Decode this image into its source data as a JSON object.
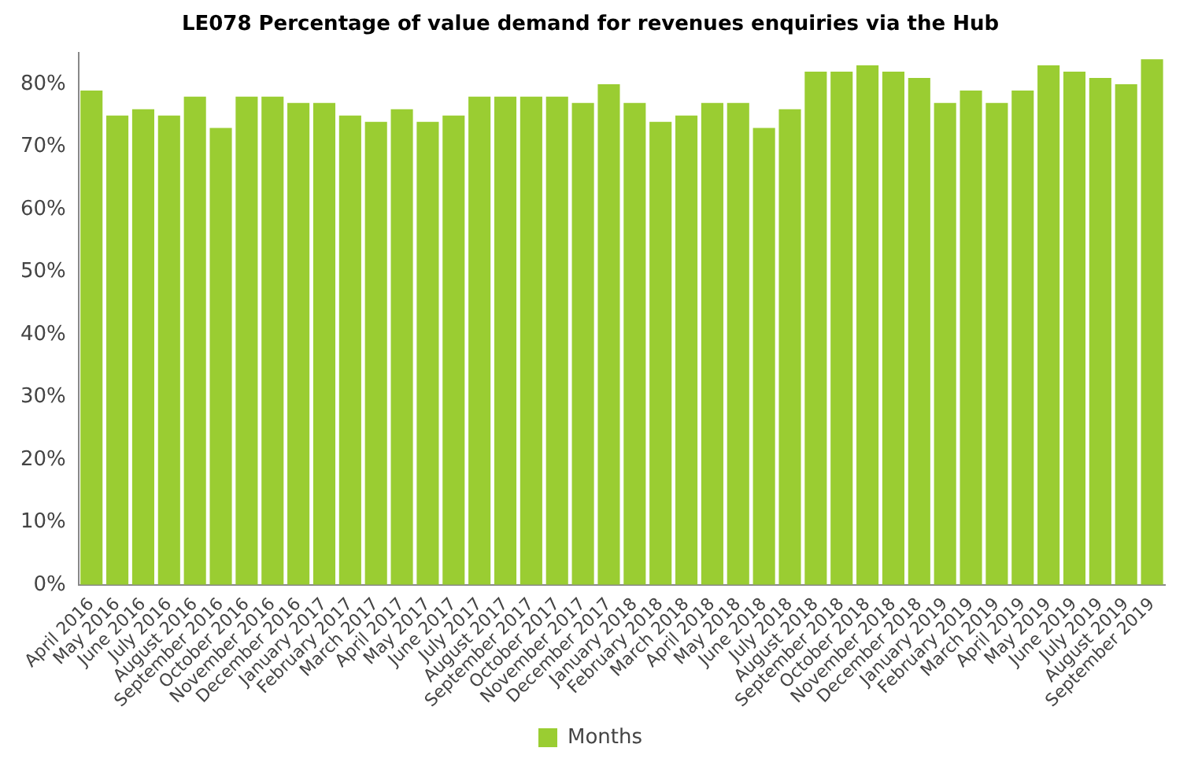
{
  "chart_data": {
    "type": "bar",
    "title": "LE078 Percentage of value demand for revenues enquiries via the Hub",
    "categories": [
      "April 2016",
      "May 2016",
      "June 2016",
      "July 2016",
      "August 2016",
      "September 2016",
      "October 2016",
      "November 2016",
      "December 2016",
      "January 2017",
      "February 2017",
      "March 2017",
      "April 2017",
      "May 2017",
      "June 2017",
      "July 2017",
      "August 2017",
      "September 2017",
      "October 2017",
      "November 2017",
      "December 2017",
      "January 2018",
      "February 2018",
      "March 2018",
      "April 2018",
      "May 2018",
      "June 2018",
      "July 2018",
      "August 2018",
      "September 2018",
      "October 2018",
      "November 2018",
      "December 2018",
      "January 2019",
      "February 2019",
      "March 2019",
      "April 2019",
      "May 2019",
      "June 2019",
      "July 2019",
      "August 2019",
      "September 2019"
    ],
    "series": [
      {
        "name": "Months",
        "color": "#9acd32",
        "values": [
          79,
          75,
          76,
          75,
          78,
          73,
          78,
          78,
          77,
          77,
          75,
          74,
          76,
          74,
          75,
          78,
          78,
          78,
          78,
          77,
          80,
          77,
          74,
          75,
          77,
          77,
          73,
          76,
          82,
          82,
          83,
          82,
          81,
          77,
          79,
          77,
          79,
          83,
          82,
          81,
          80,
          84
        ]
      }
    ],
    "ylim": [
      0,
      85
    ],
    "yticks": [
      {
        "value": 0,
        "label": "0%"
      },
      {
        "value": 10,
        "label": "10%"
      },
      {
        "value": 20,
        "label": "20%"
      },
      {
        "value": 30,
        "label": "30%"
      },
      {
        "value": 40,
        "label": "40%"
      },
      {
        "value": 50,
        "label": "50%"
      },
      {
        "value": 60,
        "label": "60%"
      },
      {
        "value": 70,
        "label": "70%"
      },
      {
        "value": 80,
        "label": "80%"
      }
    ],
    "grid": false,
    "legend": "bottom"
  }
}
